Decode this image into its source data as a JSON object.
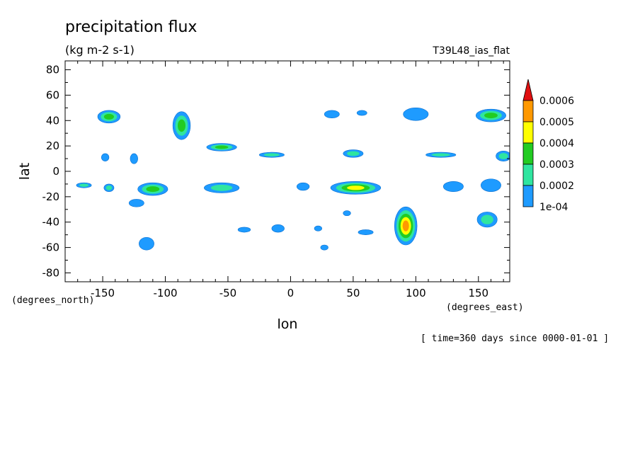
{
  "chart_data": {
    "type": "heatmap",
    "title": "precipitation flux",
    "units": "(kg m-2 s-1)",
    "run_label": "T39L48_ias_flat",
    "xlabel": "lon",
    "ylabel": "lat",
    "x_units": "(degrees_east)",
    "y_units": "(degrees_north)",
    "time_label": "[ time=360 days since 0000-01-01 ]",
    "xlim": [
      -180,
      175
    ],
    "ylim": [
      -87,
      87
    ],
    "xticks": [
      -150,
      -100,
      -50,
      0,
      50,
      100,
      150
    ],
    "yticks": [
      -80,
      -60,
      -40,
      -20,
      0,
      20,
      40,
      60,
      80
    ],
    "tick_labels_x": [
      "-150",
      "-100",
      "-50",
      "0",
      "50",
      "100",
      "150"
    ],
    "tick_labels_y": [
      "-80",
      "-60",
      "-40",
      "-20",
      "0",
      "20",
      "40",
      "60",
      "80"
    ],
    "colorbar": {
      "levels": [
        0.0001,
        0.0002,
        0.0003,
        0.0004,
        0.0005,
        0.0006
      ],
      "labels": [
        "1e-04",
        "0.0002",
        "0.0003",
        "0.0004",
        "0.0005",
        "0.0006"
      ],
      "colors": [
        "#1e9bff",
        "#2fe5a0",
        "#22cc22",
        "#ffff00",
        "#ff9900",
        "#e01010"
      ]
    },
    "blobs": [
      {
        "lon": -145,
        "lat": 43,
        "rx": 9,
        "ry": 5,
        "level": 3
      },
      {
        "lon": -87,
        "lat": 36,
        "rx": 7,
        "ry": 11,
        "level": 3
      },
      {
        "lon": -55,
        "lat": 19,
        "rx": 12,
        "ry": 3,
        "level": 3
      },
      {
        "lon": -148,
        "lat": 11,
        "rx": 3,
        "ry": 3,
        "level": 1
      },
      {
        "lon": -125,
        "lat": 10,
        "rx": 3,
        "ry": 4,
        "level": 1
      },
      {
        "lon": -15,
        "lat": 13,
        "rx": 10,
        "ry": 2,
        "level": 2
      },
      {
        "lon": 50,
        "lat": 14,
        "rx": 8,
        "ry": 3,
        "level": 2
      },
      {
        "lon": 120,
        "lat": 13,
        "rx": 12,
        "ry": 2,
        "level": 2
      },
      {
        "lon": 170,
        "lat": 12,
        "rx": 6,
        "ry": 4,
        "level": 2
      },
      {
        "lon": 33,
        "lat": 45,
        "rx": 6,
        "ry": 3,
        "level": 1
      },
      {
        "lon": 57,
        "lat": 46,
        "rx": 4,
        "ry": 2,
        "level": 1
      },
      {
        "lon": 100,
        "lat": 45,
        "rx": 10,
        "ry": 5,
        "level": 1
      },
      {
        "lon": 160,
        "lat": 44,
        "rx": 12,
        "ry": 5,
        "level": 3
      },
      {
        "lon": -165,
        "lat": -11,
        "rx": 6,
        "ry": 2,
        "level": 2
      },
      {
        "lon": -145,
        "lat": -13,
        "rx": 4,
        "ry": 3,
        "level": 2
      },
      {
        "lon": -110,
        "lat": -14,
        "rx": 12,
        "ry": 5,
        "level": 3
      },
      {
        "lon": -123,
        "lat": -25,
        "rx": 6,
        "ry": 3,
        "level": 1
      },
      {
        "lon": -55,
        "lat": -13,
        "rx": 14,
        "ry": 4,
        "level": 2
      },
      {
        "lon": 52,
        "lat": -13,
        "rx": 20,
        "ry": 5,
        "level": 4
      },
      {
        "lon": 130,
        "lat": -12,
        "rx": 8,
        "ry": 4,
        "level": 1
      },
      {
        "lon": 160,
        "lat": -11,
        "rx": 8,
        "ry": 5,
        "level": 1
      },
      {
        "lon": 10,
        "lat": -12,
        "rx": 5,
        "ry": 3,
        "level": 1
      },
      {
        "lon": 92,
        "lat": -43,
        "rx": 9,
        "ry": 15,
        "level": 5
      },
      {
        "lon": 157,
        "lat": -38,
        "rx": 8,
        "ry": 6,
        "level": 2
      },
      {
        "lon": -115,
        "lat": -57,
        "rx": 6,
        "ry": 5,
        "level": 1
      },
      {
        "lon": -37,
        "lat": -46,
        "rx": 5,
        "ry": 2,
        "level": 1
      },
      {
        "lon": -10,
        "lat": -45,
        "rx": 5,
        "ry": 3,
        "level": 1
      },
      {
        "lon": 22,
        "lat": -45,
        "rx": 3,
        "ry": 2,
        "level": 1
      },
      {
        "lon": 60,
        "lat": -48,
        "rx": 6,
        "ry": 2,
        "level": 1
      },
      {
        "lon": 45,
        "lat": -33,
        "rx": 3,
        "ry": 2,
        "level": 1
      },
      {
        "lon": 27,
        "lat": -60,
        "rx": 3,
        "ry": 2,
        "level": 1
      }
    ]
  }
}
